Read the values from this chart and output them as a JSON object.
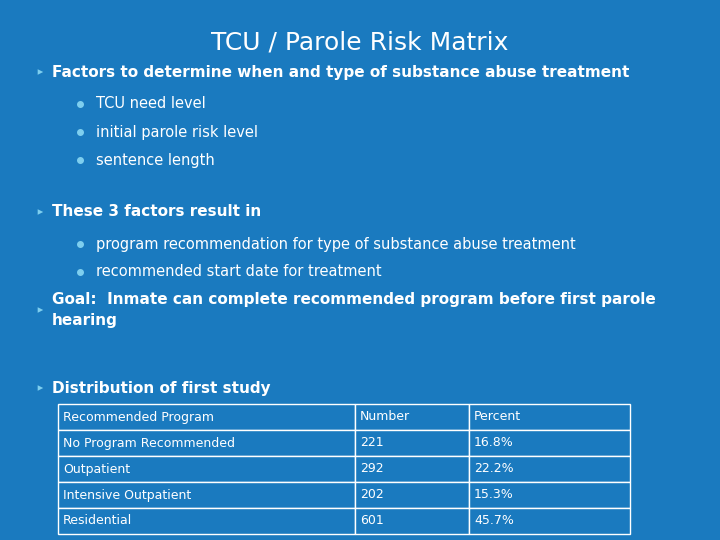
{
  "title": "TCU / Parole Risk Matrix",
  "title_color": "#ffffff",
  "title_fontsize": 18,
  "bg_color": "#1a7abf",
  "text_color": "#ffffff",
  "section1_main": "Factors to determine when and type of substance abuse treatment",
  "section1_subs": [
    "TCU need level",
    "initial parole risk level",
    "sentence length"
  ],
  "section2_main": "These 3 factors result in",
  "section2_subs": [
    "program recommendation for type of substance abuse treatment",
    "recommended start date for treatment"
  ],
  "section3_main": "Goal:  Inmate can complete recommended program before first parole\nhearing",
  "section4_main": "Distribution of first study",
  "table_headers": [
    "Recommended Program",
    "Number",
    "Percent"
  ],
  "table_rows": [
    [
      "No Program Recommended",
      "221",
      "16.8%"
    ],
    [
      "Outpatient",
      "292",
      "22.2%"
    ],
    [
      "Intensive Outpatient",
      "202",
      "15.3%"
    ],
    [
      "Residential",
      "601",
      "45.7%"
    ]
  ],
  "table_border_color": "#ffffff",
  "table_text_color": "#ffffff",
  "table_bg_color": "#1a7abf",
  "main_bullet_color": "#7ecfef",
  "sub_bullet_color": "#7ecfef",
  "main_fs": 11,
  "sub_fs": 10.5,
  "table_fs": 9
}
